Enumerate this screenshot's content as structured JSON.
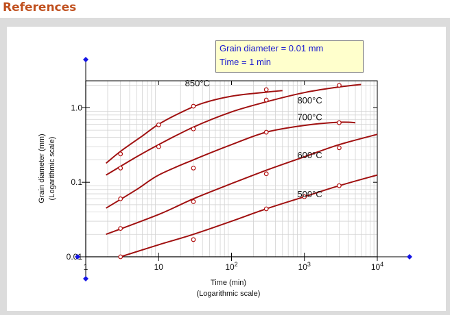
{
  "header": {
    "title": "References"
  },
  "colors": {
    "header": "#c0501e",
    "curve": "#a01010",
    "info_text": "#1a1ad0",
    "info_bg": "#ffffcc",
    "handle": "#1515e6"
  },
  "info_box": {
    "line1": "Grain diameter =  0.01 mm",
    "line2": "Time = 1 min"
  },
  "chart_data": {
    "type": "line",
    "x_scale": "log",
    "y_scale": "log",
    "xlabel": "Time (min)",
    "xlabel_sub": "(Logarithmic scale)",
    "ylabel": "Grain diameter (mm)",
    "ylabel_sub": "(Logarithmic scale)",
    "xlim": [
      1,
      10000
    ],
    "ylim": [
      0.01,
      2.3
    ],
    "grid": true,
    "x_ticks": [
      {
        "value": 1,
        "label": "1"
      },
      {
        "value": 10,
        "label": "10"
      },
      {
        "value": 100,
        "label": "10",
        "sup": "2"
      },
      {
        "value": 1000,
        "label": "10",
        "sup": "3"
      },
      {
        "value": 10000,
        "label": "10",
        "sup": "4"
      }
    ],
    "y_ticks": [
      {
        "value": 0.01,
        "label": "0.01"
      },
      {
        "value": 0.1,
        "label": "0.1"
      },
      {
        "value": 1,
        "label": "1.0"
      }
    ],
    "series": [
      {
        "name": "850°C",
        "curve": [
          [
            1.9,
            0.18
          ],
          [
            3,
            0.26
          ],
          [
            6,
            0.42
          ],
          [
            10,
            0.6
          ],
          [
            20,
            0.86
          ],
          [
            40,
            1.15
          ],
          [
            100,
            1.43
          ],
          [
            300,
            1.62
          ],
          [
            500,
            1.7
          ]
        ],
        "points": [
          [
            3,
            0.24
          ],
          [
            10,
            0.59
          ],
          [
            30,
            1.05
          ],
          [
            300,
            1.75
          ]
        ]
      },
      {
        "name": "800°C",
        "curve": [
          [
            1.9,
            0.125
          ],
          [
            5,
            0.22
          ],
          [
            10,
            0.32
          ],
          [
            30,
            0.55
          ],
          [
            100,
            0.88
          ],
          [
            300,
            1.2
          ],
          [
            1000,
            1.6
          ],
          [
            3000,
            1.9
          ],
          [
            6000,
            2.05
          ]
        ],
        "points": [
          [
            3,
            0.155
          ],
          [
            10,
            0.3
          ],
          [
            30,
            0.52
          ],
          [
            300,
            1.27
          ],
          [
            3000,
            2.0
          ]
        ]
      },
      {
        "name": "700°C",
        "curve": [
          [
            1.9,
            0.045
          ],
          [
            5,
            0.08
          ],
          [
            10,
            0.125
          ],
          [
            30,
            0.2
          ],
          [
            100,
            0.32
          ],
          [
            300,
            0.47
          ],
          [
            1000,
            0.58
          ],
          [
            3000,
            0.64
          ],
          [
            5000,
            0.63
          ]
        ],
        "points": [
          [
            3,
            0.06
          ],
          [
            30,
            0.155
          ],
          [
            300,
            0.47
          ],
          [
            3000,
            0.63
          ]
        ]
      },
      {
        "name": "600°C",
        "curve": [
          [
            1.9,
            0.02
          ],
          [
            10,
            0.037
          ],
          [
            30,
            0.06
          ],
          [
            100,
            0.096
          ],
          [
            300,
            0.145
          ],
          [
            1000,
            0.22
          ],
          [
            3000,
            0.32
          ],
          [
            10000,
            0.44
          ]
        ],
        "points": [
          [
            3,
            0.024
          ],
          [
            30,
            0.055
          ],
          [
            300,
            0.13
          ],
          [
            3000,
            0.29
          ]
        ]
      },
      {
        "name": "500°C",
        "curve": [
          [
            3,
            0.01
          ],
          [
            10,
            0.0145
          ],
          [
            30,
            0.02
          ],
          [
            100,
            0.03
          ],
          [
            300,
            0.044
          ],
          [
            1000,
            0.064
          ],
          [
            3000,
            0.09
          ],
          [
            10000,
            0.125
          ]
        ],
        "points": [
          [
            3,
            0.01
          ],
          [
            30,
            0.017
          ],
          [
            300,
            0.044
          ],
          [
            1000,
            0.064
          ],
          [
            3000,
            0.09
          ]
        ]
      }
    ],
    "series_labels": [
      {
        "series": "850°C",
        "at": [
          23,
          1.95
        ]
      },
      {
        "series": "800°C",
        "at": [
          800,
          1.15
        ]
      },
      {
        "series": "700°C",
        "at": [
          800,
          0.68
        ]
      },
      {
        "series": "600°C",
        "at": [
          800,
          0.21
        ]
      },
      {
        "series": "500°C",
        "at": [
          800,
          0.063
        ]
      }
    ]
  }
}
